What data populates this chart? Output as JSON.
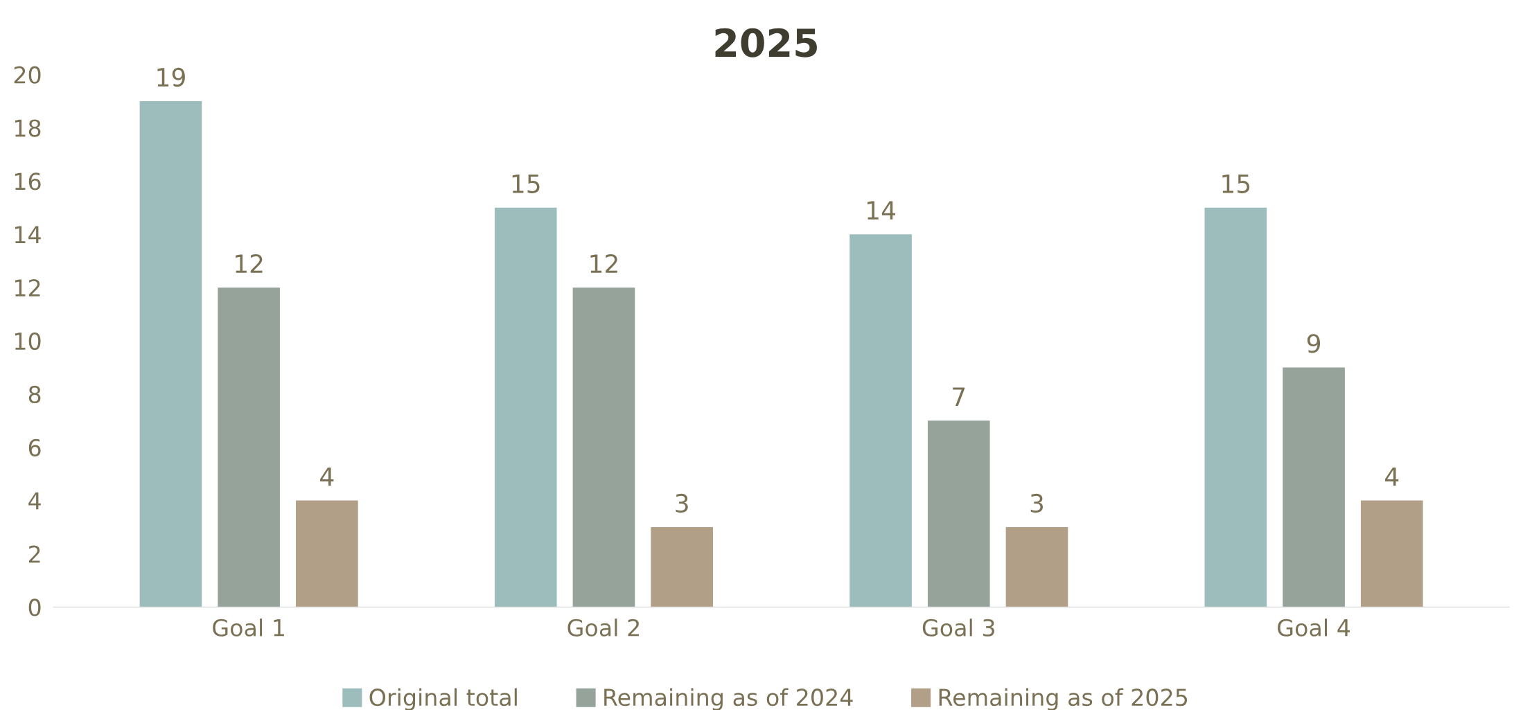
{
  "chart_data": {
    "type": "bar",
    "title": "2025",
    "categories": [
      "Goal 1",
      "Goal 2",
      "Goal 3",
      "Goal 4"
    ],
    "series": [
      {
        "name": "Original total",
        "color": "#9dbdbc",
        "values": [
          19,
          15,
          14,
          15
        ]
      },
      {
        "name": "Remaining as of 2024",
        "color": "#95a39b",
        "values": [
          12,
          12,
          7,
          9
        ]
      },
      {
        "name": "Remaining as of 2025",
        "color": "#b19f87",
        "values": [
          4,
          3,
          3,
          4
        ]
      }
    ],
    "ylim": [
      0,
      20
    ],
    "yticks": [
      0,
      2,
      4,
      6,
      8,
      10,
      12,
      14,
      16,
      18,
      20
    ],
    "grid": false,
    "legend": "bottom",
    "data_labels": true
  }
}
